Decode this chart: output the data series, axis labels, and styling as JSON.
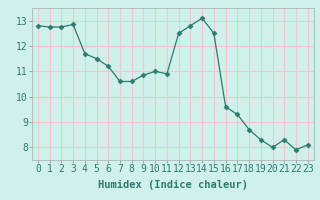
{
  "x": [
    0,
    1,
    2,
    3,
    4,
    5,
    6,
    7,
    8,
    9,
    10,
    11,
    12,
    13,
    14,
    15,
    16,
    17,
    18,
    19,
    20,
    21,
    22,
    23
  ],
  "y": [
    12.8,
    12.75,
    12.75,
    12.85,
    11.7,
    11.5,
    11.2,
    10.6,
    10.6,
    10.85,
    11.0,
    10.9,
    12.5,
    12.8,
    13.1,
    12.5,
    9.6,
    9.3,
    8.7,
    8.3,
    8.0,
    8.3,
    7.9,
    8.1
  ],
  "line_color": "#2d7b6e",
  "marker": "D",
  "marker_size": 2.5,
  "bg_color": "#cff0eb",
  "grid_color": "#f0c8c8",
  "xlabel": "Humidex (Indice chaleur)",
  "xlim": [
    -0.5,
    23.5
  ],
  "ylim": [
    7.5,
    13.5
  ],
  "yticks": [
    8,
    9,
    10,
    11,
    12,
    13
  ],
  "xticks": [
    0,
    1,
    2,
    3,
    4,
    5,
    6,
    7,
    8,
    9,
    10,
    11,
    12,
    13,
    14,
    15,
    16,
    17,
    18,
    19,
    20,
    21,
    22,
    23
  ],
  "xlabel_fontsize": 7.5,
  "tick_fontsize": 7
}
